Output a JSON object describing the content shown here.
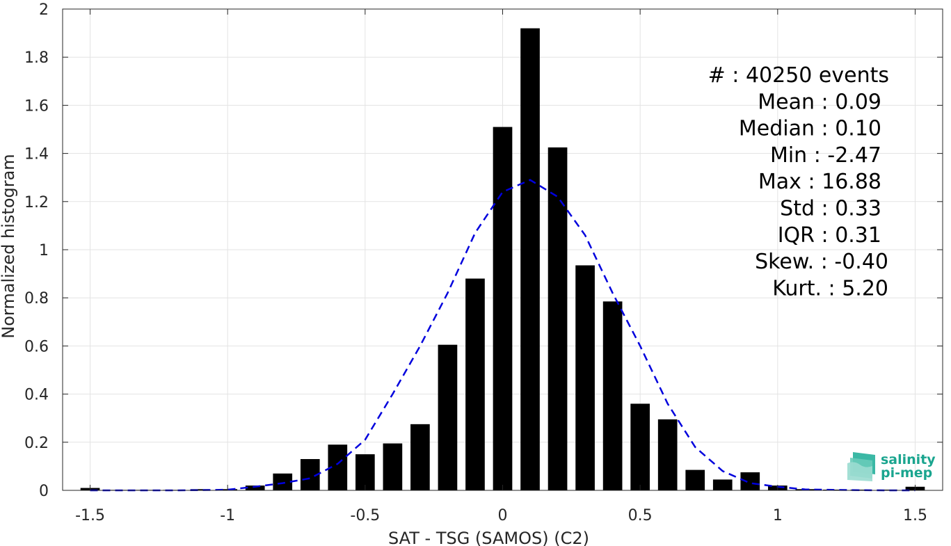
{
  "chart_data": {
    "type": "bar",
    "xlabel": "SAT - TSG (SAMOS) (C2)",
    "ylabel": "Normalized histogram",
    "xlim": [
      -1.6,
      1.6
    ],
    "ylim": [
      0,
      2
    ],
    "x_ticks": [
      -1.5,
      -1,
      -0.5,
      0,
      0.5,
      1,
      1.5
    ],
    "x_tick_labels": [
      "-1.5",
      "-1",
      "-0.5",
      "0",
      "0.5",
      "1",
      "1.5"
    ],
    "y_ticks": [
      0,
      0.2,
      0.4,
      0.6,
      0.8,
      1,
      1.2,
      1.4,
      1.6,
      1.8,
      2
    ],
    "y_tick_labels": [
      "0",
      "0.2",
      "0.4",
      "0.6",
      "0.8",
      "1",
      "1.2",
      "1.4",
      "1.6",
      "1.8",
      "2"
    ],
    "grid": true,
    "bars": {
      "color": "#000000",
      "bin_width": 0.1,
      "x": [
        -1.5,
        -1.4,
        -1.3,
        -1.2,
        -1.1,
        -1.0,
        -0.9,
        -0.8,
        -0.7,
        -0.6,
        -0.5,
        -0.4,
        -0.3,
        -0.2,
        -0.1,
        0.0,
        0.1,
        0.2,
        0.3,
        0.4,
        0.5,
        0.6,
        0.7,
        0.8,
        0.9,
        1.0,
        1.1,
        1.2,
        1.3,
        1.4,
        1.5
      ],
      "values": [
        0.01,
        0.002,
        0.002,
        0.002,
        0.005,
        0.005,
        0.02,
        0.07,
        0.13,
        0.19,
        0.15,
        0.195,
        0.275,
        0.605,
        0.88,
        1.51,
        1.92,
        1.425,
        0.935,
        0.785,
        0.36,
        0.295,
        0.085,
        0.045,
        0.075,
        0.02,
        0.005,
        0.003,
        0.003,
        0.003,
        0.015
      ]
    },
    "fit_curve": {
      "color": "#0000dd",
      "style": "dashed",
      "x": [
        -1.5,
        -1.4,
        -1.3,
        -1.2,
        -1.1,
        -1.0,
        -0.9,
        -0.8,
        -0.7,
        -0.6,
        -0.5,
        -0.4,
        -0.3,
        -0.2,
        -0.1,
        0.0,
        0.1,
        0.2,
        0.3,
        0.4,
        0.5,
        0.6,
        0.7,
        0.8,
        0.9,
        1.0,
        1.1,
        1.2,
        1.3,
        1.4,
        1.5
      ],
      "y": [
        0.0,
        0.0,
        0.0,
        0.0,
        0.001,
        0.003,
        0.015,
        0.03,
        0.05,
        0.11,
        0.21,
        0.4,
        0.6,
        0.82,
        1.07,
        1.24,
        1.29,
        1.22,
        1.06,
        0.82,
        0.6,
        0.36,
        0.18,
        0.08,
        0.03,
        0.015,
        0.004,
        0.002,
        0.001,
        0.0,
        0.0
      ]
    },
    "annotations": [
      "#  : 40250 events",
      "Mean : 0.09",
      "Median : 0.10",
      "Min : -2.47",
      "Max : 16.88",
      "Std : 0.33",
      "IQR : 0.31",
      "Skew. : -0.40",
      "Kurt. : 5.20"
    ]
  },
  "logo": {
    "line1": "salinity",
    "line2": "pi-mep",
    "color": "#1aa58f"
  }
}
